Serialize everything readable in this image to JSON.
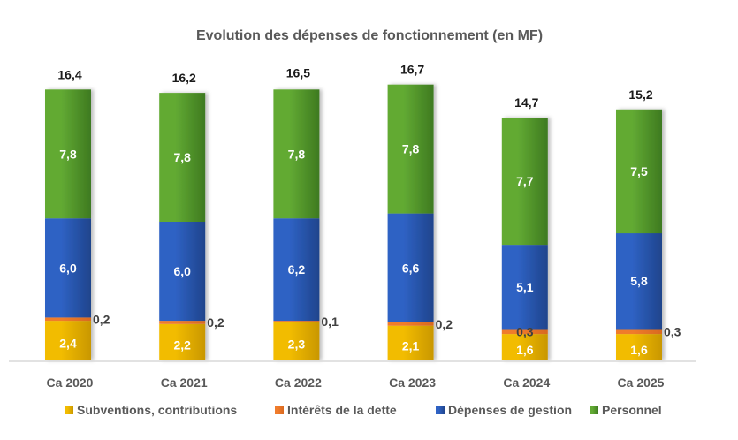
{
  "chart_data": {
    "type": "bar",
    "stacked": true,
    "title": "Evolution des dépenses de fonctionnement (en MF)",
    "xlabel": "",
    "ylabel": "",
    "ylim": [
      0,
      17
    ],
    "grid": false,
    "legend_position": "bottom",
    "categories": [
      "Ca 2020",
      "Ca 2021",
      "Ca 2022",
      "Ca 2023",
      "Ca 2024",
      "Ca 2025"
    ],
    "series": [
      {
        "name": "Subventions, contributions",
        "color": "#F2BC00",
        "color_dark": "#C99700",
        "values": [
          2.4,
          2.2,
          2.3,
          2.1,
          1.6,
          1.6
        ],
        "labels": [
          "2,4",
          "2,2",
          "2,3",
          "2,1",
          "1,6",
          "1,6"
        ],
        "label_position": "inside"
      },
      {
        "name": "Intérêts de la dette",
        "color": "#F07C2C",
        "color_dark": "#D8691F",
        "values": [
          0.2,
          0.2,
          0.1,
          0.2,
          0.3,
          0.3
        ],
        "labels": [
          "0,2",
          "0,2",
          "0,1",
          "0,2",
          "0,3",
          "0,3"
        ],
        "label_position": "outside-right"
      },
      {
        "name": "Dépenses de gestion",
        "color": "#2F62C4",
        "color_dark": "#1F448C",
        "values": [
          6.0,
          6.0,
          6.2,
          6.6,
          5.1,
          5.8
        ],
        "labels": [
          "6,0",
          "6,0",
          "6,2",
          "6,6",
          "5,1",
          "5,8"
        ],
        "label_position": "inside"
      },
      {
        "name": "Personnel",
        "color": "#62AA33",
        "color_dark": "#3E7A20",
        "values": [
          7.8,
          7.8,
          7.8,
          7.8,
          7.7,
          7.5
        ],
        "labels": [
          "7,8",
          "7,8",
          "7,8",
          "7,8",
          "7,7",
          "7,5"
        ],
        "label_position": "inside"
      }
    ],
    "totals": [
      16.4,
      16.2,
      16.5,
      16.7,
      14.7,
      15.2
    ],
    "total_labels": [
      "16,4",
      "16,2",
      "16,5",
      "16,7",
      "14,7",
      "15,2"
    ]
  }
}
